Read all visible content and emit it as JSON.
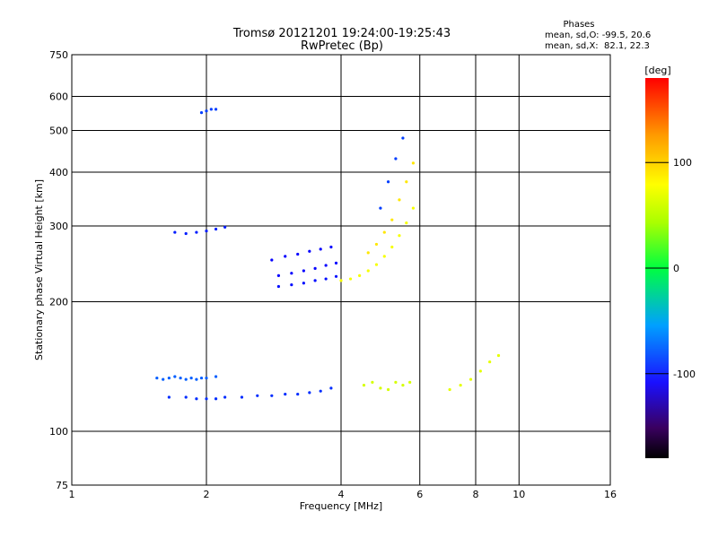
{
  "chart_data": {
    "type": "scatter",
    "title": "Tromsø 20121201 19:24:00-19:25:43",
    "subtitle": "RwPretec (Bp)",
    "xlabel": "Frequency [MHz]",
    "ylabel": "Stationary phase Virtual Height [km]",
    "x_scale": "log",
    "y_scale": "log",
    "xlim": [
      1,
      16
    ],
    "ylim": [
      75,
      750
    ],
    "x_ticks": [
      1,
      2,
      4,
      6,
      8,
      10,
      16
    ],
    "x_tick_labels": [
      "1",
      "2",
      "4",
      "6",
      "8",
      "10",
      "16"
    ],
    "y_ticks": [
      75,
      100,
      200,
      300,
      400,
      500,
      600,
      750
    ],
    "y_tick_labels": [
      "75",
      "100",
      "200",
      "300",
      "400",
      "500",
      "600",
      "750"
    ],
    "grid": true,
    "phases": {
      "heading": "Phases",
      "line1": "mean, sd,O: -99.5, 20.6",
      "line2": "mean, sd,X:  82.1, 22.3"
    },
    "colorbar": {
      "label": "[deg]",
      "range": [
        -180,
        180
      ],
      "ticks": [
        100,
        0,
        -100
      ],
      "tick_labels": [
        "100",
        "0",
        "-100"
      ],
      "colormap": "rainbow"
    },
    "traces": [
      {
        "name": "",
        "points": [
          [
            1.55,
            133
          ],
          [
            1.6,
            132
          ],
          [
            1.65,
            133
          ],
          [
            1.7,
            134
          ],
          [
            1.75,
            133
          ],
          [
            1.8,
            132
          ],
          [
            1.85,
            133
          ],
          [
            1.9,
            132
          ],
          [
            1.95,
            133
          ],
          [
            2.0,
            133
          ],
          [
            2.1,
            134
          ]
        ],
        "phase": -100
      },
      {
        "name": "",
        "points": [
          [
            1.65,
            120
          ],
          [
            1.8,
            120
          ],
          [
            1.9,
            119
          ],
          [
            2.0,
            119
          ],
          [
            2.1,
            119
          ],
          [
            2.2,
            120
          ],
          [
            2.4,
            120
          ],
          [
            2.6,
            121
          ],
          [
            2.8,
            121
          ],
          [
            3.0,
            122
          ],
          [
            3.2,
            122
          ],
          [
            3.4,
            123
          ],
          [
            3.6,
            124
          ],
          [
            3.8,
            126
          ]
        ],
        "phase": -115
      },
      {
        "name": "",
        "points": [
          [
            2.8,
            250
          ],
          [
            3.0,
            255
          ],
          [
            3.2,
            258
          ],
          [
            3.4,
            262
          ],
          [
            3.6,
            265
          ],
          [
            3.8,
            268
          ]
        ],
        "phase": -130
      },
      {
        "name": "",
        "points": [
          [
            2.9,
            230
          ],
          [
            3.1,
            233
          ],
          [
            3.3,
            236
          ],
          [
            3.5,
            239
          ],
          [
            3.7,
            243
          ],
          [
            3.9,
            246
          ]
        ],
        "phase": -130
      },
      {
        "name": "",
        "points": [
          [
            2.9,
            217
          ],
          [
            3.1,
            219
          ],
          [
            3.3,
            221
          ],
          [
            3.5,
            224
          ],
          [
            3.7,
            226
          ],
          [
            3.9,
            229
          ]
        ],
        "phase": -125
      },
      {
        "name": "",
        "points": [
          [
            4.0,
            224
          ],
          [
            4.2,
            226
          ],
          [
            4.4,
            230
          ],
          [
            4.6,
            236
          ],
          [
            4.8,
            244
          ],
          [
            5.0,
            255
          ],
          [
            5.2,
            268
          ],
          [
            5.4,
            285
          ],
          [
            5.6,
            305
          ],
          [
            5.8,
            330
          ]
        ],
        "phase": 100
      },
      {
        "name": "",
        "points": [
          [
            4.6,
            260
          ],
          [
            4.8,
            272
          ],
          [
            5.0,
            290
          ],
          [
            5.2,
            310
          ],
          [
            5.4,
            345
          ],
          [
            5.6,
            380
          ],
          [
            5.8,
            420
          ]
        ],
        "phase": 110
      },
      {
        "name": "",
        "points": [
          [
            4.9,
            330
          ],
          [
            5.1,
            380
          ],
          [
            5.3,
            430
          ],
          [
            5.5,
            480
          ]
        ],
        "phase": -110
      },
      {
        "name": "",
        "points": [
          [
            1.95,
            550
          ],
          [
            2.0,
            555
          ],
          [
            2.05,
            560
          ],
          [
            2.1,
            560
          ]
        ],
        "phase": -110
      },
      {
        "name": "",
        "points": [
          [
            1.7,
            290
          ],
          [
            1.8,
            288
          ],
          [
            1.9,
            290
          ],
          [
            2.0,
            292
          ],
          [
            2.1,
            295
          ],
          [
            2.2,
            298
          ]
        ],
        "phase": -120
      },
      {
        "name": "",
        "points": [
          [
            4.5,
            128
          ],
          [
            4.7,
            130
          ],
          [
            4.9,
            126
          ],
          [
            5.1,
            125
          ],
          [
            5.3,
            130
          ],
          [
            5.5,
            128
          ],
          [
            5.7,
            130
          ]
        ],
        "phase": 90
      },
      {
        "name": "",
        "points": [
          [
            7.0,
            125
          ],
          [
            7.4,
            128
          ],
          [
            7.8,
            132
          ],
          [
            8.2,
            138
          ],
          [
            8.6,
            145
          ],
          [
            9.0,
            150
          ]
        ],
        "phase": 95
      }
    ]
  }
}
